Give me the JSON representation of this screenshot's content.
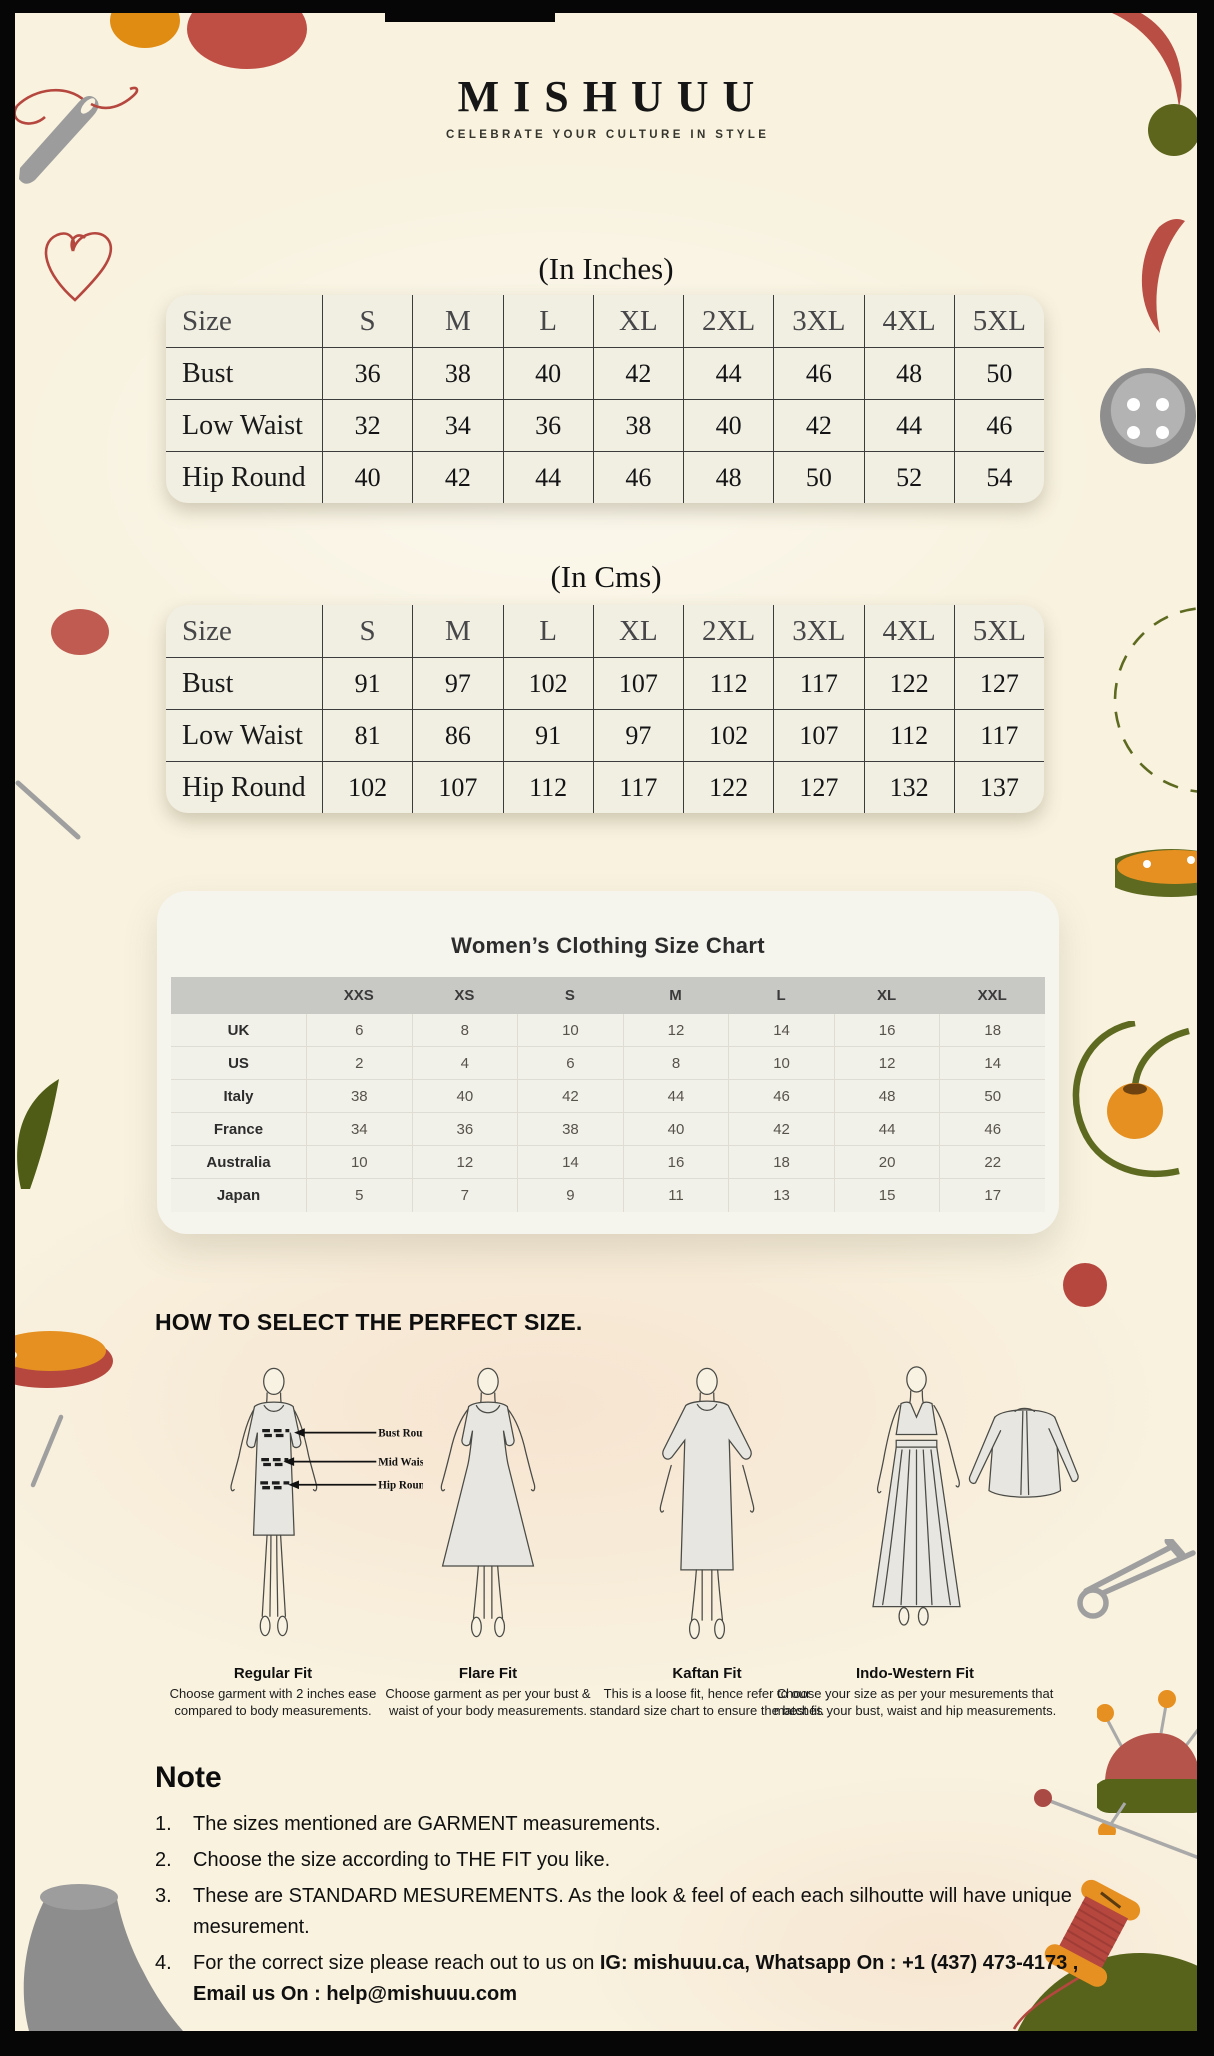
{
  "brand": {
    "name": "MISHUUU",
    "tagline": "CELEBRATE YOUR CULTURE IN STYLE"
  },
  "inches_table": {
    "title": "(In Inches)",
    "header": [
      "Size",
      "S",
      "M",
      "L",
      "XL",
      "2XL",
      "3XL",
      "4XL",
      "5XL"
    ],
    "rows": [
      {
        "label": "Bust",
        "values": [
          36,
          38,
          40,
          42,
          44,
          46,
          48,
          50
        ]
      },
      {
        "label": "Low Waist",
        "values": [
          32,
          34,
          36,
          38,
          40,
          42,
          44,
          46
        ]
      },
      {
        "label": "Hip Round",
        "values": [
          40,
          42,
          44,
          46,
          48,
          50,
          52,
          54
        ]
      }
    ]
  },
  "cms_table": {
    "title": "(In Cms)",
    "header": [
      "Size",
      "S",
      "M",
      "L",
      "XL",
      "2XL",
      "3XL",
      "4XL",
      "5XL"
    ],
    "rows": [
      {
        "label": "Bust",
        "values": [
          91,
          97,
          102,
          107,
          112,
          117,
          122,
          127
        ]
      },
      {
        "label": "Low Waist",
        "values": [
          81,
          86,
          91,
          97,
          102,
          107,
          112,
          117
        ]
      },
      {
        "label": "Hip Round",
        "values": [
          102,
          107,
          112,
          117,
          122,
          127,
          132,
          137
        ]
      }
    ]
  },
  "womens_chart": {
    "title": "Women’s Clothing Size Chart",
    "header": [
      "",
      "XXS",
      "XS",
      "S",
      "M",
      "L",
      "XL",
      "XXL"
    ],
    "rows": [
      {
        "label": "UK",
        "values": [
          6,
          8,
          10,
          12,
          14,
          16,
          18
        ]
      },
      {
        "label": "US",
        "values": [
          2,
          4,
          6,
          8,
          10,
          12,
          14
        ]
      },
      {
        "label": "Italy",
        "values": [
          38,
          40,
          42,
          44,
          46,
          48,
          50
        ]
      },
      {
        "label": "France",
        "values": [
          34,
          36,
          38,
          40,
          42,
          44,
          46
        ]
      },
      {
        "label": "Australia",
        "values": [
          10,
          12,
          14,
          16,
          18,
          20,
          22
        ]
      },
      {
        "label": "Japan",
        "values": [
          5,
          7,
          9,
          11,
          13,
          15,
          17
        ]
      }
    ]
  },
  "fit_guide": {
    "title": "HOW TO SELECT THE PERFECT SIZE.",
    "measurement_labels": [
      "Bust Round",
      "Mid Waist",
      "Hip Round"
    ],
    "fits": [
      {
        "name": "Regular Fit",
        "description": "Choose garment with 2 inches ease compared to body measurements."
      },
      {
        "name": "Flare Fit",
        "description": "Choose garment as per your bust & waist of your body measurements."
      },
      {
        "name": "Kaftan Fit",
        "description": "This is a loose fit, hence refer to our standard size chart to ensure the best fit."
      },
      {
        "name": "Indo-Western Fit",
        "description": "Choose your size as per your mesurements that matches your bust, waist and hip measurements."
      }
    ]
  },
  "note": {
    "title": "Note",
    "items": [
      {
        "text": "The sizes mentioned are GARMENT measurements."
      },
      {
        "text": "Choose the size according to THE FIT you like."
      },
      {
        "text": "These are STANDARD MESUREMENTS. As the look & feel of each each silhoutte will have unique mesurement."
      },
      {
        "text": "For the correct size please reach out to us on ",
        "bold": "IG: mishuuu.ca, Whatsapp On : +1 (437) 473-4173 , Email us On : help@mishuuu.com"
      }
    ]
  },
  "colors": {
    "background_cream": "#f8f2df",
    "card_cream": "#f1efe2",
    "header_band_gray": "#c8c8c5",
    "deco_red": "#b5473f",
    "deco_orange": "#e59021",
    "deco_olive": "#57631a",
    "deco_gray": "#9c9c9c"
  }
}
